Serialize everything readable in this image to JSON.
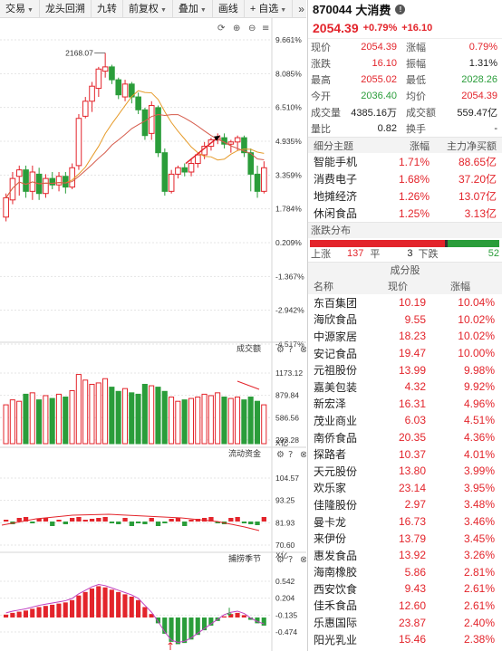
{
  "toolbar": {
    "items": [
      "交易",
      "龙头回溯",
      "九转",
      "前复权",
      "叠加",
      "画线",
      "+ 自选"
    ],
    "more": "»"
  },
  "chart": {
    "max_label": "2168.07",
    "ticks": [
      "9.661%",
      "8.085%",
      "6.510%",
      "4.935%",
      "3.359%",
      "1.784%",
      "0.209%",
      "-1.367%",
      "-2.942%",
      "-4.517%"
    ],
    "volume_title": "成交额",
    "volume_ticks": [
      "1173.12",
      "879.84",
      "586.56",
      "293.28"
    ],
    "volume_unit": "X亿",
    "flow_title": "流动资金",
    "flow_ticks": [
      "104.57",
      "93.25",
      "81.93",
      "70.60"
    ],
    "flow_unit": "X亿",
    "osc_title": "捕捞季节",
    "osc_ticks": [
      "0.542",
      "0.204",
      "-0.135",
      "-0.474"
    ],
    "colors": {
      "up": "#e3242b",
      "down": "#2a9d3a",
      "ma1": "#e69b2a",
      "ma2": "#d55a4a"
    }
  },
  "header": {
    "code": "870044",
    "name": "大消费",
    "price": "2054.39",
    "change_pct": "+0.79%",
    "change": "+16.10"
  },
  "quote": [
    {
      "l1": "现价",
      "v1": "2054.39",
      "c1": "red",
      "l2": "涨幅",
      "v2": "0.79%",
      "c2": "red"
    },
    {
      "l1": "涨跌",
      "v1": "16.10",
      "c1": "red",
      "l2": "振幅",
      "v2": "1.31%",
      "c2": "dark"
    },
    {
      "l1": "最高",
      "v1": "2055.02",
      "c1": "red",
      "l2": "最低",
      "v2": "2028.26",
      "c2": "green"
    },
    {
      "l1": "今开",
      "v1": "2036.40",
      "c1": "green",
      "l2": "均价",
      "v2": "2054.39",
      "c2": "red"
    },
    {
      "l1": "成交量",
      "v1": "4385.16万",
      "c1": "dark",
      "l2": "成交额",
      "v2": "559.47亿",
      "c2": "dark"
    },
    {
      "l1": "量比",
      "v1": "0.82",
      "c1": "dark",
      "l2": "换手",
      "v2": "-",
      "c2": "dark"
    }
  ],
  "sectors": {
    "headers": [
      "细分主题",
      "涨幅",
      "主力净买额"
    ],
    "rows": [
      {
        "name": "智能手机",
        "pct": "1.71%",
        "net": "88.65亿"
      },
      {
        "name": "消费电子",
        "pct": "1.68%",
        "net": "37.20亿"
      },
      {
        "name": "地摊经济",
        "pct": "1.26%",
        "net": "13.07亿"
      },
      {
        "name": "休闲食品",
        "pct": "1.25%",
        "net": "3.13亿"
      }
    ]
  },
  "distribution": {
    "title": "涨跌分布",
    "up_label": "上涨",
    "up": "137",
    "flat_label": "平",
    "flat": "3",
    "down_label": "下跌",
    "down": "52"
  },
  "constituents": {
    "title": "成分股",
    "headers": [
      "名称",
      "现价",
      "涨幅"
    ],
    "rows": [
      {
        "name": "东百集团",
        "price": "10.19",
        "pct": "10.04%"
      },
      {
        "name": "海欣食品",
        "price": "9.55",
        "pct": "10.02%"
      },
      {
        "name": "中源家居",
        "price": "18.23",
        "pct": "10.02%"
      },
      {
        "name": "安记食品",
        "price": "19.47",
        "pct": "10.00%"
      },
      {
        "name": "元祖股份",
        "price": "13.99",
        "pct": "9.98%"
      },
      {
        "name": "嘉美包装",
        "price": "4.32",
        "pct": "9.92%"
      },
      {
        "name": "新宏泽",
        "price": "16.31",
        "pct": "4.96%"
      },
      {
        "name": "茂业商业",
        "price": "6.03",
        "pct": "4.51%"
      },
      {
        "name": "南侨食品",
        "price": "20.35",
        "pct": "4.36%"
      },
      {
        "name": "探路者",
        "price": "10.37",
        "pct": "4.01%"
      },
      {
        "name": "天元股份",
        "price": "13.80",
        "pct": "3.99%"
      },
      {
        "name": "欢乐家",
        "price": "23.14",
        "pct": "3.95%"
      },
      {
        "name": "佳隆股份",
        "price": "2.97",
        "pct": "3.48%"
      },
      {
        "name": "曼卡龙",
        "price": "16.73",
        "pct": "3.46%"
      },
      {
        "name": "来伊份",
        "price": "13.79",
        "pct": "3.45%"
      },
      {
        "name": "惠发食品",
        "price": "13.92",
        "pct": "3.26%"
      },
      {
        "name": "海南橡胶",
        "price": "5.86",
        "pct": "2.81%"
      },
      {
        "name": "西安饮食",
        "price": "9.43",
        "pct": "2.61%"
      },
      {
        "name": "佳禾食品",
        "price": "12.60",
        "pct": "2.61%"
      },
      {
        "name": "乐惠国际",
        "price": "23.87",
        "pct": "2.40%"
      },
      {
        "name": "阳光乳业",
        "price": "15.46",
        "pct": "2.38%"
      }
    ]
  }
}
